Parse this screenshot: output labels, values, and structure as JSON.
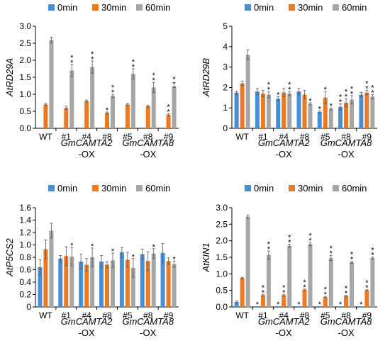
{
  "colors": {
    "0min": "#4a8fd6",
    "30min": "#ec7a22",
    "60min": "#a6a6a6"
  },
  "chart_data": [
    {
      "type": "bar",
      "ylabel": "AtRD29A",
      "ylim": [
        0,
        3.0
      ],
      "yticks": [
        "0.0",
        "0.5",
        "1.0",
        "1.5",
        "2.0",
        "2.5",
        "3.0"
      ],
      "categories": [
        "WT",
        "#1",
        "#4",
        "#8",
        "#5",
        "#8",
        "#9"
      ],
      "series": [
        {
          "name": "0min",
          "values": [
            0,
            0,
            0,
            0,
            0,
            0,
            0
          ],
          "err": [
            0,
            0,
            0,
            0,
            0,
            0,
            0
          ],
          "stars": [
            "",
            "",
            "",
            "",
            "",
            "",
            ""
          ]
        },
        {
          "name": "30min",
          "values": [
            0.7,
            0.6,
            0.8,
            0.45,
            0.7,
            0.65,
            0.4
          ],
          "err": [
            0.03,
            0.05,
            0.03,
            0.03,
            0.03,
            0.03,
            0.03
          ],
          "stars": [
            "",
            "",
            "",
            "*",
            "",
            "",
            "* *"
          ]
        },
        {
          "name": "60min",
          "values": [
            2.6,
            1.7,
            1.8,
            0.95,
            1.6,
            1.2,
            1.22
          ],
          "err": [
            0.08,
            0.18,
            0.18,
            0.05,
            0.15,
            0.15,
            0.02
          ],
          "stars": [
            "",
            "* *",
            "* *",
            "* *",
            "* *",
            "* *",
            "* *"
          ]
        }
      ],
      "legend": [
        "0min",
        "30min",
        "60min"
      ],
      "group_labels": [
        {
          "line1": "GmCAMTA2",
          "line2": "-OX"
        },
        {
          "line1": "GmCAMTA8",
          "line2": "-OX"
        }
      ]
    },
    {
      "type": "bar",
      "ylabel": "AtRD29B",
      "ylim": [
        0,
        5
      ],
      "yticks": [
        "0",
        "1",
        "2",
        "3",
        "4",
        "5"
      ],
      "categories": [
        "WT",
        "#1",
        "#4",
        "#8",
        "#5",
        "#8",
        "#9"
      ],
      "series": [
        {
          "name": "0min",
          "values": [
            1.75,
            1.8,
            1.45,
            1.8,
            0.8,
            1.05,
            1.65
          ],
          "err": [
            0.08,
            0.15,
            0.1,
            0.15,
            0.05,
            0.15,
            0.1
          ],
          "stars": [
            "",
            "",
            "*",
            "",
            "*",
            "* *",
            ""
          ]
        },
        {
          "name": "30min",
          "values": [
            2.2,
            1.7,
            1.75,
            1.65,
            1.5,
            1.25,
            1.75
          ],
          "err": [
            0.1,
            0.15,
            0.2,
            0.2,
            0.3,
            0.2,
            0.1
          ],
          "stars": [
            "",
            "",
            "",
            "",
            "*",
            "* *",
            "* *"
          ]
        },
        {
          "name": "60min",
          "values": [
            3.6,
            1.65,
            1.7,
            1.2,
            0.95,
            1.4,
            1.55
          ],
          "err": [
            0.25,
            0.15,
            0.1,
            0.05,
            0.05,
            0.2,
            0.1
          ],
          "stars": [
            "",
            "* *",
            "* *",
            "*",
            "*",
            "* *",
            "* *"
          ]
        }
      ],
      "legend": [
        "0min",
        "30min",
        "60min"
      ],
      "group_labels": [
        {
          "line1": "GmCAMTA2",
          "line2": "-OX"
        },
        {
          "line1": "GmCAMTA8",
          "line2": "-OX"
        }
      ]
    },
    {
      "type": "bar",
      "ylabel": "AtP5CS2",
      "ylim": [
        0,
        1.6
      ],
      "yticks": [
        "0",
        "0.2",
        "0.4",
        "0.6",
        "0.8",
        "1.0",
        "1.2",
        "1.4",
        "1.6"
      ],
      "categories": [
        "WT",
        "#1",
        "#4",
        "#8",
        "#5",
        "#8",
        "#9"
      ],
      "series": [
        {
          "name": "0min",
          "values": [
            0.64,
            0.78,
            0.73,
            0.73,
            0.88,
            0.85,
            0.87
          ],
          "err": [
            0.12,
            0.05,
            0.12,
            0.1,
            0.08,
            0.08,
            0.15
          ],
          "stars": [
            "",
            "",
            "",
            "",
            "",
            "",
            ""
          ]
        },
        {
          "name": "30min",
          "values": [
            0.93,
            0.82,
            0.68,
            0.68,
            0.76,
            0.74,
            0.74
          ],
          "err": [
            0.15,
            0.15,
            0.1,
            0.05,
            0.12,
            0.15,
            0.05
          ],
          "stars": [
            "",
            "",
            "",
            "",
            "",
            "",
            ""
          ]
        },
        {
          "name": "60min",
          "values": [
            1.23,
            0.81,
            0.8,
            0.75,
            0.63,
            0.86,
            0.69
          ],
          "err": [
            0.12,
            0.15,
            0.15,
            0.12,
            0.15,
            0.08,
            0.05
          ],
          "stars": [
            "",
            "*",
            "*",
            "*",
            "*",
            "*",
            "*"
          ]
        }
      ],
      "legend": [
        "0min",
        "30min",
        "60min"
      ],
      "group_labels": [
        {
          "line1": "GmCAMTA2",
          "line2": "-OX"
        },
        {
          "line1": "GmCAMTA8",
          "line2": "-OX"
        }
      ]
    },
    {
      "type": "bar",
      "ylabel": "AtKIN1",
      "ylim": [
        0,
        3.0
      ],
      "yticks": [
        "0.0",
        "0.5",
        "1.0",
        "1.5",
        "2.0",
        "2.5",
        "3.0"
      ],
      "categories": [
        "WT",
        "#1",
        "#4",
        "#8",
        "#5",
        "#8",
        "#9"
      ],
      "series": [
        {
          "name": "0min",
          "values": [
            0.15,
            0.02,
            0.02,
            0.02,
            0.02,
            0.02,
            0.02
          ],
          "err": [
            0.03,
            0,
            0,
            0,
            0,
            0,
            0
          ],
          "stars": [
            "",
            "*",
            "*",
            "*",
            "*",
            "*",
            "*"
          ]
        },
        {
          "name": "30min",
          "values": [
            0.88,
            0.35,
            0.35,
            0.52,
            0.3,
            0.33,
            0.5
          ],
          "err": [
            0.02,
            0.02,
            0.02,
            0.02,
            0.02,
            0.02,
            0.02
          ],
          "stars": [
            "",
            "* *",
            "* *",
            "* *",
            "* *",
            "* *",
            "* *"
          ]
        },
        {
          "name": "60min",
          "values": [
            2.73,
            1.57,
            1.85,
            1.9,
            1.48,
            1.35,
            1.48
          ],
          "err": [
            0.05,
            0.12,
            0.05,
            0.05,
            0.08,
            0.03,
            0.03
          ],
          "stars": [
            "",
            "* *",
            "* *",
            "* *",
            "* *",
            "* *",
            "* *"
          ]
        }
      ],
      "legend": [
        "0min",
        "30min",
        "60min"
      ],
      "group_labels": [
        {
          "line1": "GmCAMTA2",
          "line2": "-OX"
        },
        {
          "line1": "GmCAMTA8",
          "line2": "-OX"
        }
      ]
    }
  ]
}
